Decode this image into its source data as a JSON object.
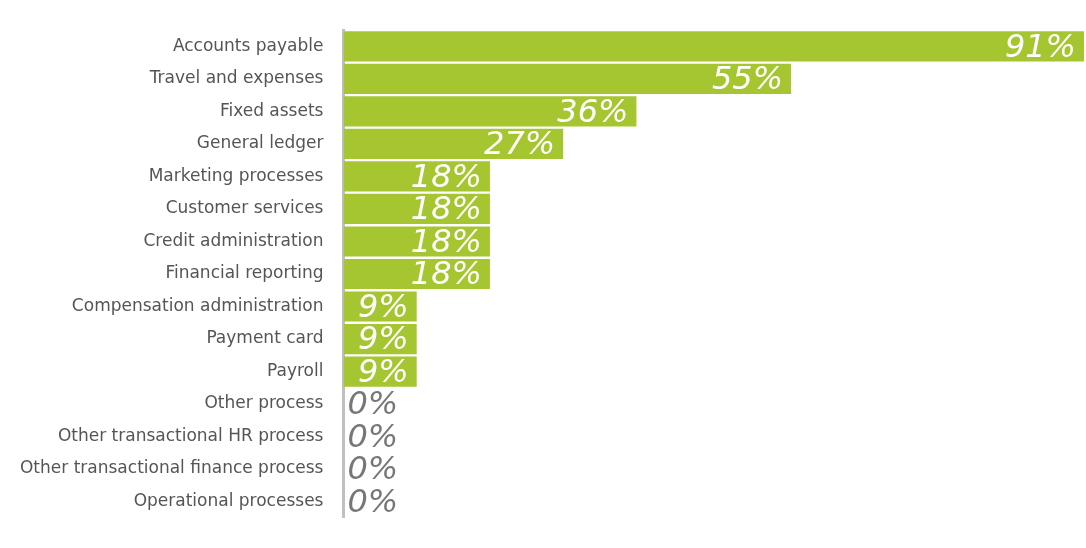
{
  "chart_data": {
    "type": "bar",
    "orientation": "horizontal",
    "categories": [
      "Accounts payable",
      "Travel and expenses",
      "Fixed assets",
      "General ledger",
      "Marketing processes",
      "Customer services",
      "Credit administration",
      "Financial reporting",
      "Compensation administration",
      "Payment card",
      "Payroll",
      "Other process",
      "Other transactional HR process",
      "Other transactional finance process",
      "Operational processes"
    ],
    "values": [
      91,
      55,
      36,
      27,
      18,
      18,
      18,
      18,
      9,
      9,
      9,
      0,
      0,
      0,
      0
    ],
    "value_labels": [
      "91%",
      "55%",
      "36%",
      "27%",
      "18%",
      "18%",
      "18%",
      "18%",
      "9%",
      "9%",
      "9%",
      "0%",
      "0%",
      "0%",
      "0%"
    ],
    "color": "#a5c630",
    "xlim": [
      0,
      91
    ],
    "grid": false,
    "legend": false
  }
}
